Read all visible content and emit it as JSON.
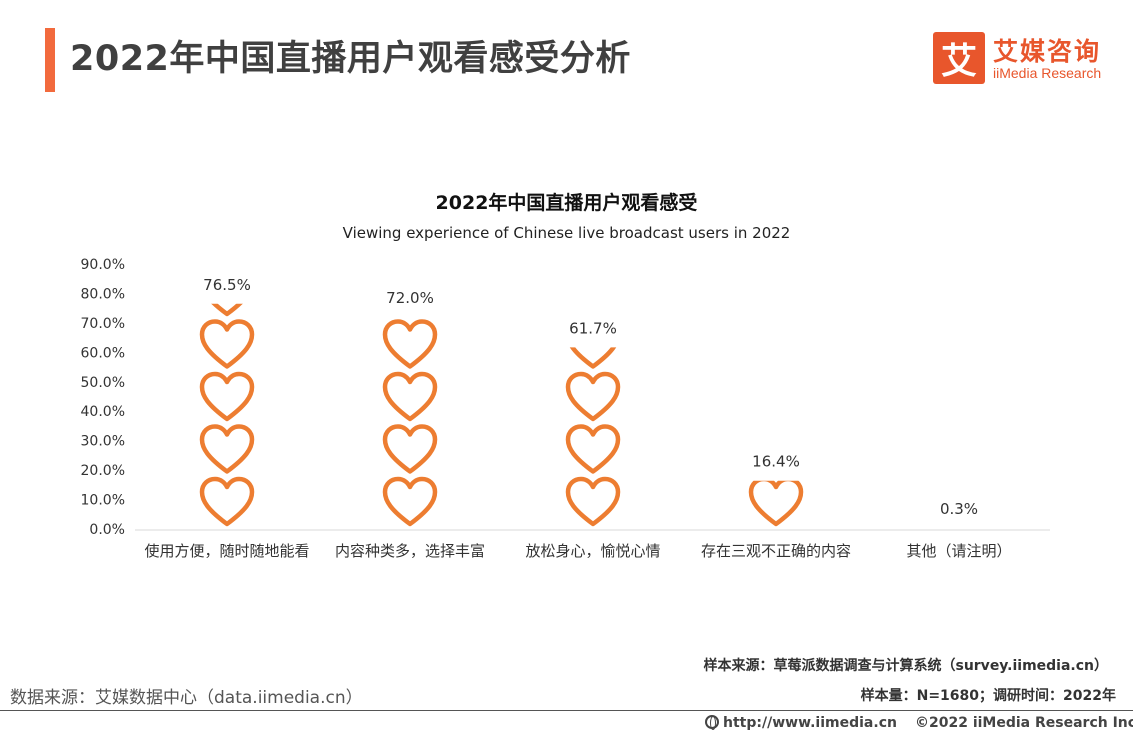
{
  "page": {
    "title": "2022年中国直播用户观看感受分析"
  },
  "logo": {
    "mark": "艾",
    "cn": "艾媒咨询",
    "en": "iiMedia Research"
  },
  "colors": {
    "accent": "#f26a3d",
    "heart_stroke": "#ed7d31",
    "axis": "#d9d9d9"
  },
  "chart_data": {
    "type": "bar",
    "mark_style": "stacked heart pictograph",
    "title": "2022年中国直播用户观看感受",
    "subtitle": "Viewing experience of Chinese live broadcast users in 2022",
    "categories": [
      "使用方便，随时随地能看",
      "内容种类多，选择丰富",
      "放松身心，愉悦心情",
      "存在三观不正确的内容",
      "其他（请注明）"
    ],
    "values": [
      76.5,
      72.0,
      61.7,
      16.4,
      0.3
    ],
    "value_labels": [
      "76.5%",
      "72.0%",
      "61.7%",
      "16.4%",
      "0.3%"
    ],
    "ylim": [
      0,
      90
    ],
    "yticks": [
      "0.0%",
      "10.0%",
      "20.0%",
      "30.0%",
      "40.0%",
      "50.0%",
      "60.0%",
      "70.0%",
      "80.0%",
      "90.0%"
    ],
    "grid": false
  },
  "sources": {
    "sample_source": "样本来源：草莓派数据调查与计算系统（survey.iimedia.cn）",
    "sample_size": "样本量：N=1680；调研时间：2022年",
    "data_source": "数据来源：艾媒数据中心（data.iimedia.cn）"
  },
  "footer": {
    "url": "http://www.iimedia.cn",
    "copyright": "©2022  iiMedia Research  Inc"
  }
}
